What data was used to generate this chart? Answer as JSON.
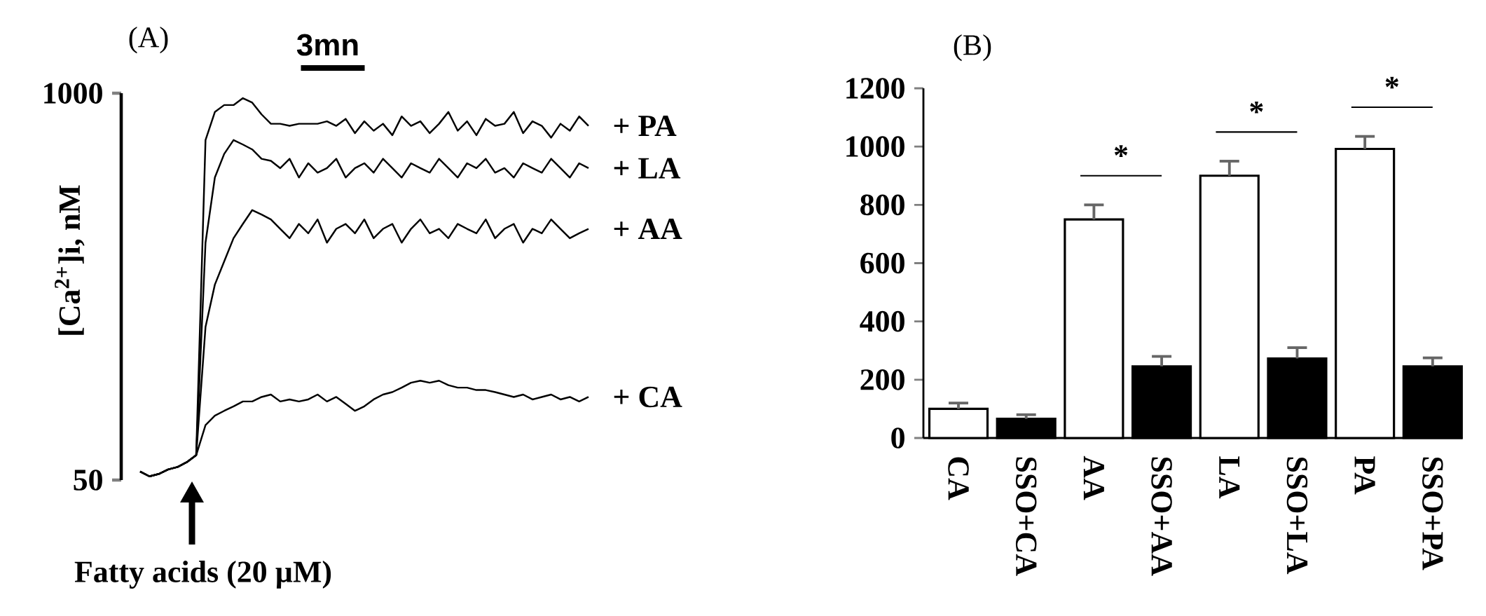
{
  "chart_data": [
    {
      "type": "line",
      "title": "(A)",
      "ylabel": "[Ca$^{2+}$]i, nM",
      "categories": [
        null,
        null,
        null,
        null,
        null,
        null,
        null,
        null,
        null,
        null,
        null,
        null,
        null,
        null,
        null,
        null,
        null,
        null,
        null,
        null,
        null,
        null,
        null,
        null,
        null,
        null,
        null,
        null,
        null,
        null,
        null,
        null,
        null,
        null,
        null,
        null,
        null,
        null,
        null,
        null,
        null,
        null,
        null,
        null,
        null,
        null,
        null,
        null,
        null
      ],
      "series": [
        {
          "name": "+ PA",
          "color": "#000000",
          "values": [
            71,
            59,
            65,
            76,
            82,
            94,
            111,
            885,
            954,
            971,
            971,
            988,
            977,
            948,
            925,
            925,
            920,
            925,
            925,
            925,
            931,
            920,
            937,
            902,
            931,
            908,
            925,
            897,
            943,
            920,
            931,
            902,
            925,
            954,
            908,
            931,
            897,
            937,
            920,
            925,
            954,
            902,
            931,
            920,
            891,
            925,
            908,
            943,
            920
          ]
        },
        {
          "name": "+ LA",
          "color": "#000000",
          "values": [
            71,
            59,
            65,
            76,
            82,
            94,
            111,
            633,
            793,
            851,
            885,
            874,
            862,
            839,
            834,
            816,
            839,
            793,
            828,
            805,
            816,
            839,
            793,
            816,
            828,
            805,
            839,
            816,
            793,
            828,
            816,
            805,
            839,
            816,
            793,
            828,
            816,
            839,
            805,
            816,
            793,
            828,
            816,
            805,
            839,
            816,
            793,
            828,
            816
          ]
        },
        {
          "name": "+ AA",
          "color": "#000000",
          "values": [
            71,
            59,
            65,
            76,
            82,
            94,
            111,
            426,
            530,
            587,
            644,
            679,
            713,
            702,
            690,
            667,
            644,
            679,
            656,
            690,
            633,
            667,
            679,
            656,
            690,
            644,
            667,
            679,
            633,
            667,
            690,
            656,
            667,
            644,
            679,
            667,
            656,
            690,
            644,
            667,
            679,
            633,
            667,
            656,
            690,
            667,
            644,
            656,
            667
          ]
        },
        {
          "name": "+ CA",
          "color": "#000000",
          "values": [
            71,
            59,
            65,
            76,
            82,
            94,
            111,
            185,
            208,
            220,
            231,
            243,
            243,
            254,
            260,
            243,
            248,
            243,
            248,
            260,
            243,
            254,
            237,
            220,
            231,
            248,
            260,
            266,
            277,
            289,
            294,
            289,
            294,
            283,
            277,
            277,
            271,
            271,
            266,
            260,
            254,
            260,
            248,
            254,
            260,
            248,
            254,
            243,
            254
          ]
        }
      ],
      "ylim": [
        50,
        1000
      ],
      "yticks": [
        50,
        1000
      ],
      "tick_labels": "y",
      "annotations": [
        "3mn",
        "Fatty acids (20 µM)"
      ]
    },
    {
      "type": "bar",
      "title": "(B)",
      "categories": [
        "CA",
        "SSO+CA",
        "AA",
        "SSO+AA",
        "LA",
        "SSO+LA",
        "PA",
        "SSO+PA"
      ],
      "values": [
        100,
        66,
        750,
        246,
        900,
        273,
        992,
        246
      ],
      "colors": [
        "#ffffff",
        "#000000",
        "#ffffff",
        "#000000",
        "#ffffff",
        "#000000",
        "#ffffff",
        "#000000"
      ],
      "errors": [
        [
          100,
          120
        ],
        [
          66,
          80
        ],
        [
          750,
          800
        ],
        [
          246,
          280
        ],
        [
          900,
          950
        ],
        [
          273,
          310
        ],
        [
          992,
          1035
        ],
        [
          246,
          275
        ]
      ],
      "ylim": [
        0,
        1200
      ],
      "yticks": [
        0,
        200,
        400,
        600,
        800,
        1000,
        1200
      ],
      "annotations": [
        "*",
        "*",
        "*"
      ]
    }
  ]
}
